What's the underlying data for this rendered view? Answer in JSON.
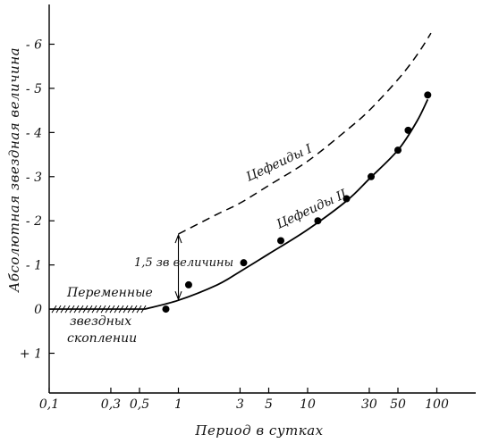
{
  "chart_data": {
    "type": "scatter",
    "xlabel": "Период в сутках",
    "ylabel": "Абсолютная звездная величина",
    "x_scale": "log",
    "xlim": [
      0.1,
      200
    ],
    "ylim": [
      1.9,
      -6.9
    ],
    "y_inverted": true,
    "grid": false,
    "x_ticks": [
      {
        "value": 0.1,
        "label": "0,1"
      },
      {
        "value": 0.3,
        "label": "0,3"
      },
      {
        "value": 0.5,
        "label": "0,5"
      },
      {
        "value": 1,
        "label": "1"
      },
      {
        "value": 3,
        "label": "3"
      },
      {
        "value": 5,
        "label": "5"
      },
      {
        "value": 10,
        "label": "10"
      },
      {
        "value": 30,
        "label": "30"
      },
      {
        "value": 50,
        "label": "50"
      },
      {
        "value": 100,
        "label": "100"
      }
    ],
    "y_ticks": [
      {
        "value": -6,
        "label": "- 6"
      },
      {
        "value": -5,
        "label": "- 5"
      },
      {
        "value": -4,
        "label": "- 4"
      },
      {
        "value": -3,
        "label": "- 3"
      },
      {
        "value": -2,
        "label": "- 2"
      },
      {
        "value": -1,
        "label": "- 1"
      },
      {
        "value": 0,
        "label": "0"
      },
      {
        "value": 1,
        "label": "+ 1"
      }
    ],
    "series": [
      {
        "name": "Цефеиды I",
        "style": "dashed",
        "x": [
          1,
          2,
          3,
          5,
          10,
          20,
          30,
          50,
          70,
          90
        ],
        "y": [
          -1.7,
          -2.15,
          -2.4,
          -2.8,
          -3.35,
          -4.05,
          -4.5,
          -5.2,
          -5.75,
          -6.25
        ]
      },
      {
        "name": "Цефеиды II",
        "style": "solid",
        "x": [
          0.55,
          1,
          2,
          3,
          5,
          10,
          20,
          30,
          50,
          70,
          85
        ],
        "y": [
          0.0,
          -0.2,
          -0.55,
          -0.85,
          -1.25,
          -1.8,
          -2.45,
          -2.95,
          -3.6,
          -4.25,
          -4.75
        ]
      },
      {
        "name": "",
        "style": "points",
        "x": [
          0.8,
          1.2,
          3.2,
          6.2,
          12,
          20,
          31,
          50,
          60,
          85
        ],
        "y": [
          0.0,
          -0.55,
          -1.05,
          -1.55,
          -2.0,
          -2.5,
          -3.0,
          -3.6,
          -4.05,
          -4.85
        ]
      },
      {
        "name": "Переменные звездных скоплений",
        "style": "hatched",
        "x": [
          0.1,
          0.55
        ],
        "y": [
          0,
          0
        ]
      }
    ],
    "annotations": [
      {
        "id": "cep1",
        "text": "Цефеиды I"
      },
      {
        "id": "cep2",
        "text": "Цефеиды II"
      },
      {
        "id": "delta",
        "text": "1,5 зв величины"
      },
      {
        "id": "clusters_1",
        "text": "Переменные"
      },
      {
        "id": "clusters_2",
        "text": "звездных"
      },
      {
        "id": "clusters_3",
        "text": "скоплении"
      }
    ]
  }
}
